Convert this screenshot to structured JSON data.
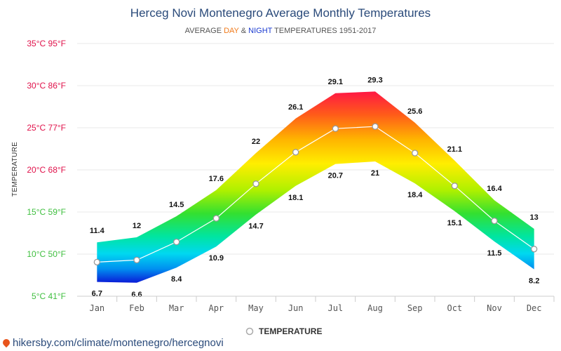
{
  "title": "Herceg Novi Montenegro Average Monthly Temperatures",
  "subtitle": {
    "prefix": "AVERAGE ",
    "day": "DAY",
    "mid": " & ",
    "night": "NIGHT",
    "suffix": " TEMPERATURES 1951-2017"
  },
  "colors": {
    "title": "#2a4a7a",
    "day": "#f07a1a",
    "night": "#1a3ad0",
    "grid": "#e8e8e8",
    "line": "#ffffff"
  },
  "source_text": "hikersby.com/climate/montenegro/hercegnovi",
  "chart_data": {
    "type": "area",
    "ylabel": "TEMPERATURE",
    "ylim": [
      5,
      35
    ],
    "yticks": [
      {
        "value": 35,
        "label": "35°C 95°F",
        "color": "#e0114a"
      },
      {
        "value": 30,
        "label": "30°C 86°F",
        "color": "#e0114a"
      },
      {
        "value": 25,
        "label": "25°C 77°F",
        "color": "#e0114a"
      },
      {
        "value": 20,
        "label": "20°C 68°F",
        "color": "#e0114a"
      },
      {
        "value": 15,
        "label": "15°C 59°F",
        "color": "#3fbf3f"
      },
      {
        "value": 10,
        "label": "10°C 50°F",
        "color": "#3fbf3f"
      },
      {
        "value": 5,
        "label": "5°C 41°F",
        "color": "#3fbf3f"
      }
    ],
    "categories": [
      "Jan",
      "Feb",
      "Mar",
      "Apr",
      "May",
      "Jun",
      "Jul",
      "Aug",
      "Sep",
      "Oct",
      "Nov",
      "Dec"
    ],
    "series": [
      {
        "name": "DAY",
        "values": [
          11.4,
          12,
          14.5,
          17.6,
          22,
          26.1,
          29.1,
          29.3,
          25.6,
          21.1,
          16.4,
          13
        ]
      },
      {
        "name": "NIGHT",
        "values": [
          6.7,
          6.6,
          8.4,
          10.9,
          14.7,
          18.1,
          20.7,
          21,
          18.4,
          15.1,
          11.5,
          8.2
        ]
      },
      {
        "name": "TEMPERATURE",
        "values": [
          9.05,
          9.3,
          11.45,
          14.25,
          18.35,
          22.1,
          24.9,
          25.15,
          22,
          18.1,
          13.95,
          10.6
        ]
      }
    ],
    "legend": "TEMPERATURE",
    "legend_position": "bottom-center",
    "grid": true
  }
}
